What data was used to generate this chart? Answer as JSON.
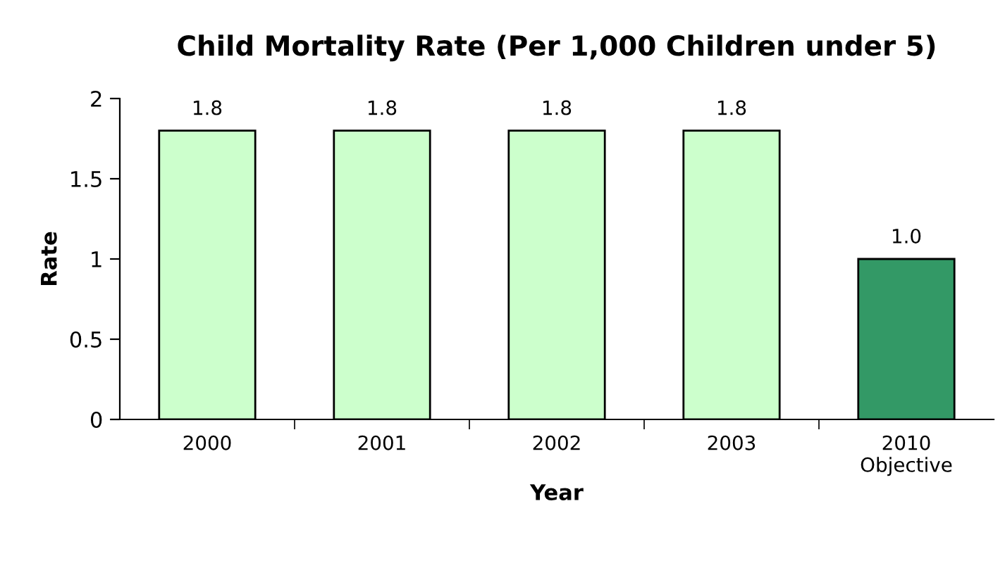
{
  "chart_data": {
    "type": "bar",
    "title": "Child Mortality Rate (Per 1,000 Children under 5)",
    "xlabel": "Year",
    "ylabel": "Rate",
    "categories": [
      "2000",
      "2001",
      "2002",
      "2003",
      "2010\nObjective"
    ],
    "values": [
      1.8,
      1.8,
      1.8,
      1.8,
      1.0
    ],
    "colors": [
      "#ccffcc",
      "#ccffcc",
      "#ccffcc",
      "#ccffcc",
      "#339966"
    ],
    "value_labels": [
      "1.8",
      "1.8",
      "1.8",
      "1.8",
      "1.0"
    ],
    "ylim": [
      0,
      2
    ],
    "yticks": [
      0,
      0.5,
      1,
      1.5,
      2
    ],
    "grid": false
  }
}
